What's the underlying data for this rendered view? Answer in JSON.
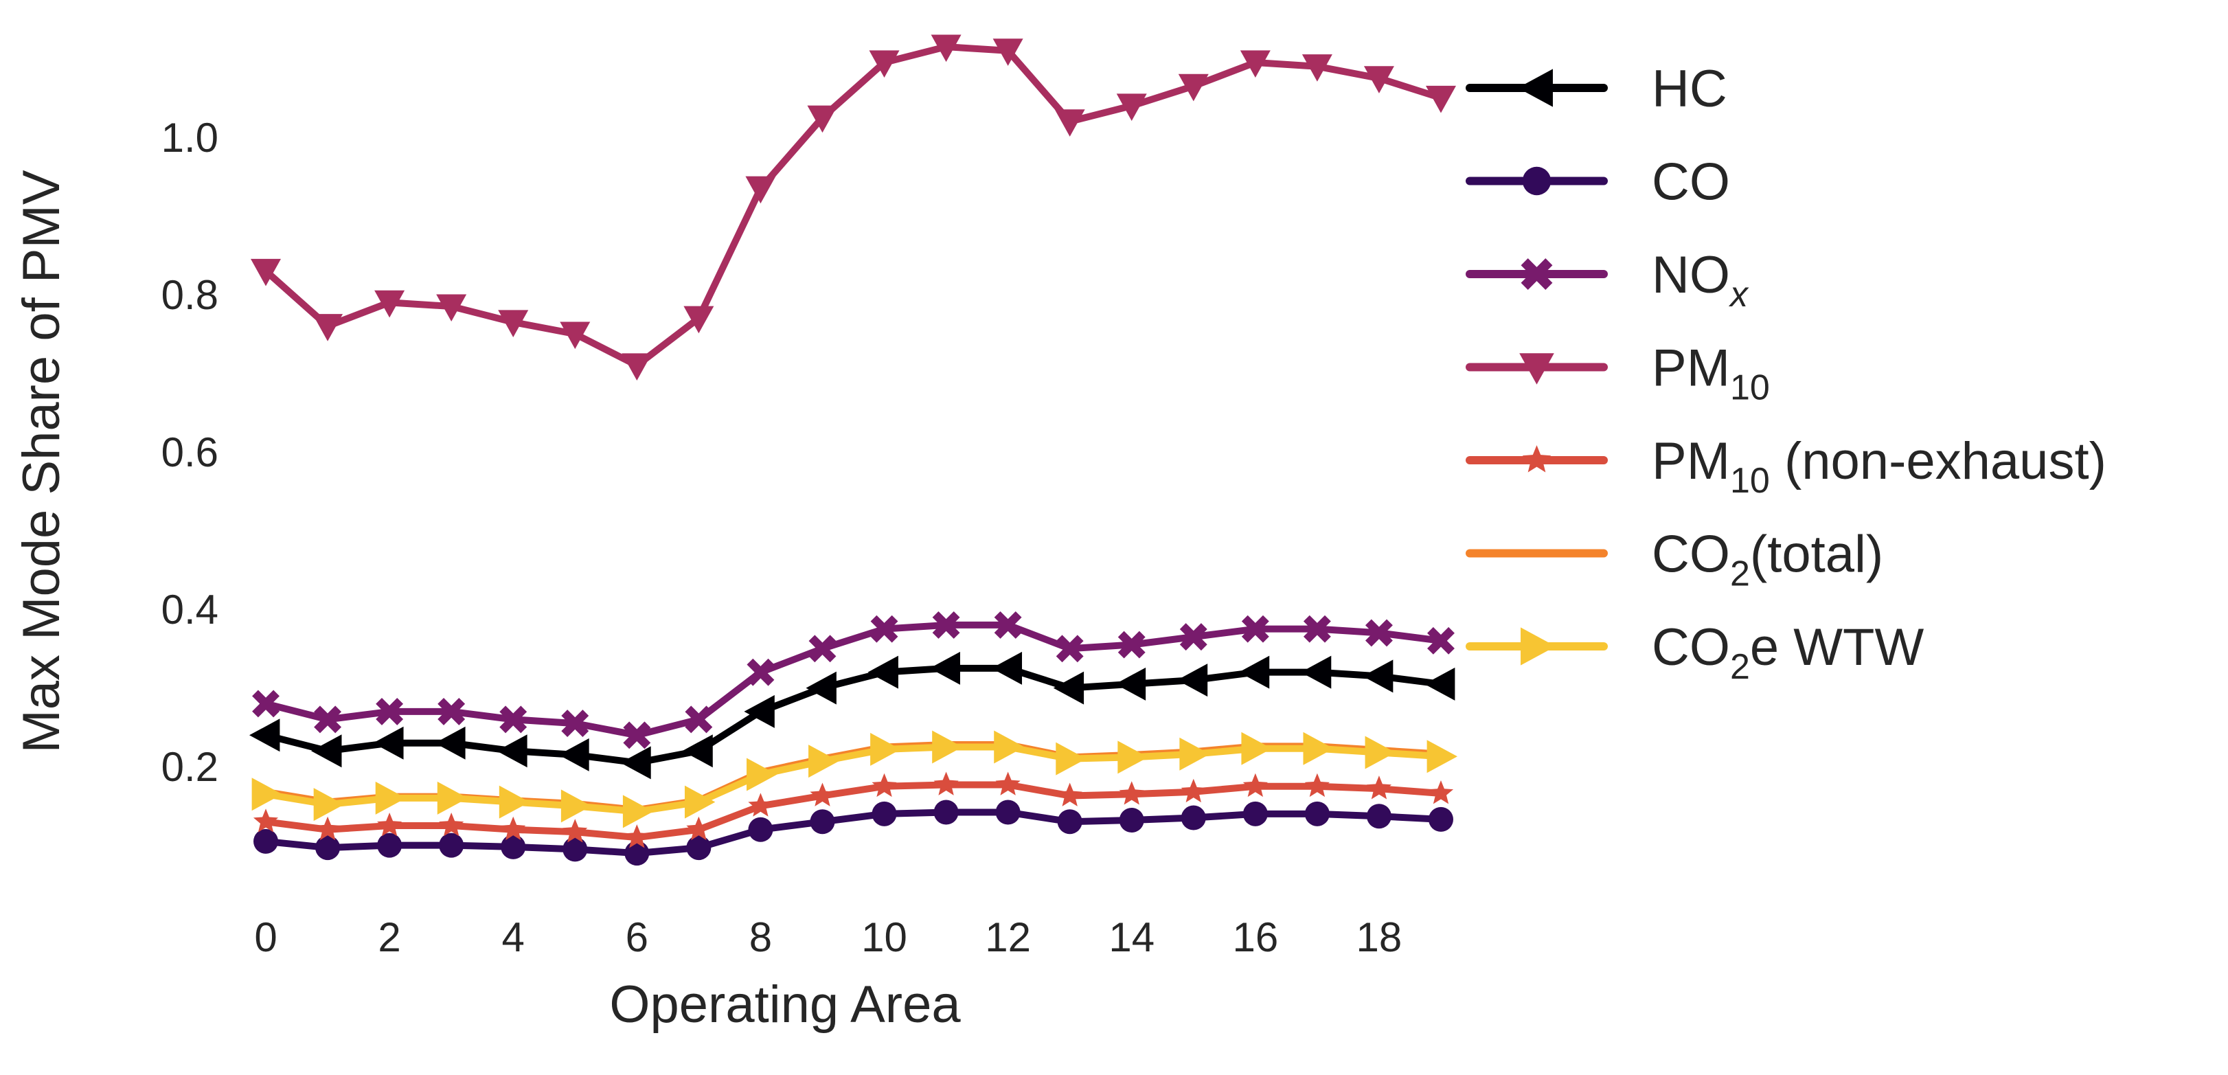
{
  "chart_data": {
    "type": "line",
    "title": "",
    "xlabel": "Operating Area",
    "ylabel": "Max Mode Share of PMV",
    "xlim": [
      -0.3,
      19.3
    ],
    "ylim": [
      0.07,
      1.15
    ],
    "xticks": [
      0,
      2,
      4,
      6,
      8,
      10,
      12,
      14,
      16,
      18
    ],
    "yticks": [
      0.2,
      0.4,
      0.6,
      0.8,
      1.0
    ],
    "ytick_labels": [
      "0.2",
      "0.4",
      "0.6",
      "0.8",
      "1.0"
    ],
    "grid": false,
    "legend_position": "right",
    "x": [
      0,
      1,
      2,
      3,
      4,
      5,
      6,
      7,
      8,
      9,
      10,
      11,
      12,
      13,
      14,
      15,
      16,
      17,
      18,
      19
    ],
    "series": [
      {
        "name": "HC",
        "label": [
          "HC",
          "",
          ""
        ],
        "color": "#000004",
        "marker": "triangle-left",
        "values": [
          0.24,
          0.22,
          0.23,
          0.23,
          0.22,
          0.215,
          0.205,
          0.22,
          0.27,
          0.3,
          0.32,
          0.325,
          0.325,
          0.3,
          0.305,
          0.31,
          0.32,
          0.32,
          0.315,
          0.305
        ]
      },
      {
        "name": "CO",
        "label": [
          "CO",
          "",
          ""
        ],
        "color": "#320a5a",
        "marker": "circle",
        "values": [
          0.105,
          0.097,
          0.1,
          0.1,
          0.098,
          0.095,
          0.09,
          0.097,
          0.12,
          0.13,
          0.14,
          0.142,
          0.142,
          0.13,
          0.132,
          0.135,
          0.14,
          0.14,
          0.137,
          0.133
        ]
      },
      {
        "name": "NOx",
        "label": [
          "NO",
          "x",
          ""
        ],
        "color": "#781b6c",
        "marker": "x",
        "values": [
          0.28,
          0.26,
          0.27,
          0.27,
          0.26,
          0.255,
          0.24,
          0.26,
          0.32,
          0.35,
          0.375,
          0.38,
          0.38,
          0.35,
          0.355,
          0.365,
          0.375,
          0.375,
          0.37,
          0.36
        ]
      },
      {
        "name": "PM10",
        "label": [
          "PM",
          "10",
          ""
        ],
        "color": "#a82e5f",
        "marker": "triangle-down",
        "values": [
          0.83,
          0.76,
          0.79,
          0.785,
          0.765,
          0.75,
          0.71,
          0.77,
          0.935,
          1.025,
          1.095,
          1.115,
          1.11,
          1.02,
          1.04,
          1.065,
          1.095,
          1.09,
          1.075,
          1.05
        ]
      },
      {
        "name": "PM10 (non-exhaust)",
        "label": [
          "PM",
          "10",
          " (non-exhaust)"
        ],
        "color": "#d94d3d",
        "marker": "star",
        "values": [
          0.13,
          0.12,
          0.125,
          0.125,
          0.12,
          0.117,
          0.11,
          0.12,
          0.15,
          0.163,
          0.175,
          0.177,
          0.177,
          0.163,
          0.165,
          0.168,
          0.175,
          0.175,
          0.172,
          0.166
        ]
      },
      {
        "name": "CO2(total)",
        "label": [
          "CO",
          "2",
          "(total)"
        ],
        "color": "#f4832b",
        "marker": "line",
        "values": [
          0.168,
          0.155,
          0.162,
          0.162,
          0.157,
          0.153,
          0.145,
          0.157,
          0.193,
          0.21,
          0.225,
          0.228,
          0.228,
          0.212,
          0.215,
          0.219,
          0.226,
          0.226,
          0.221,
          0.216
        ]
      },
      {
        "name": "CO2e WTW",
        "label": [
          "CO",
          "2",
          "e WTW"
        ],
        "color": "#f7c533",
        "marker": "triangle-right",
        "values": [
          0.165,
          0.152,
          0.16,
          0.16,
          0.155,
          0.15,
          0.143,
          0.155,
          0.19,
          0.207,
          0.222,
          0.225,
          0.225,
          0.21,
          0.212,
          0.216,
          0.223,
          0.223,
          0.218,
          0.213
        ]
      }
    ]
  }
}
